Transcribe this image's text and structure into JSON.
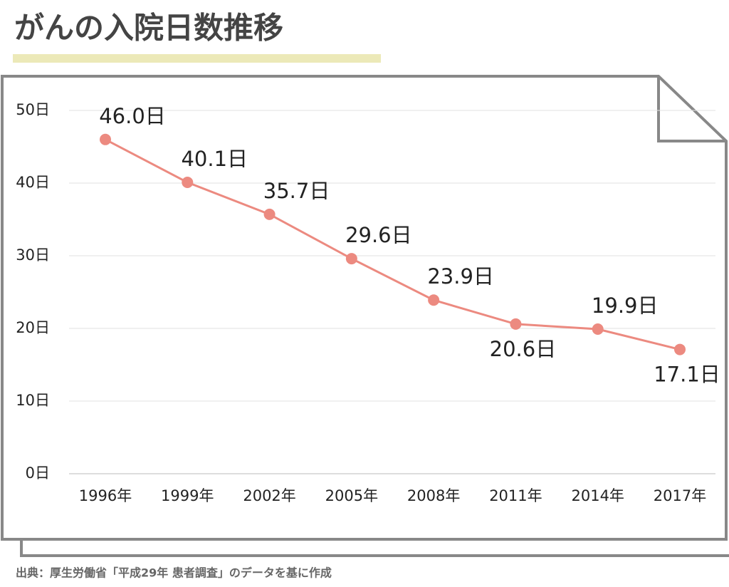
{
  "chart_data": {
    "type": "line",
    "title": "がんの入院日数推移",
    "categories": [
      "1996年",
      "1999年",
      "2002年",
      "2005年",
      "2008年",
      "2011年",
      "2014年",
      "2017年"
    ],
    "series": [
      {
        "name": "入院日数",
        "color": "#ec8a80",
        "values": [
          46.0,
          40.1,
          35.7,
          29.6,
          23.9,
          20.6,
          19.9,
          17.1
        ],
        "value_labels": [
          "46.0日",
          "40.1日",
          "35.7日",
          "29.6日",
          "23.9日",
          "20.6日",
          "19.9日",
          "17.1日"
        ]
      }
    ],
    "ylim": [
      0,
      50
    ],
    "yticks": [
      {
        "value": 0,
        "label": "0日"
      },
      {
        "value": 10,
        "label": "10日"
      },
      {
        "value": 20,
        "label": "20日"
      },
      {
        "value": 30,
        "label": "30日"
      },
      {
        "value": 40,
        "label": "40日"
      },
      {
        "value": 50,
        "label": "50日"
      }
    ],
    "grid": true,
    "source": "出典：厚生労働省「平成29年 患者調査」のデータを基に作成"
  }
}
